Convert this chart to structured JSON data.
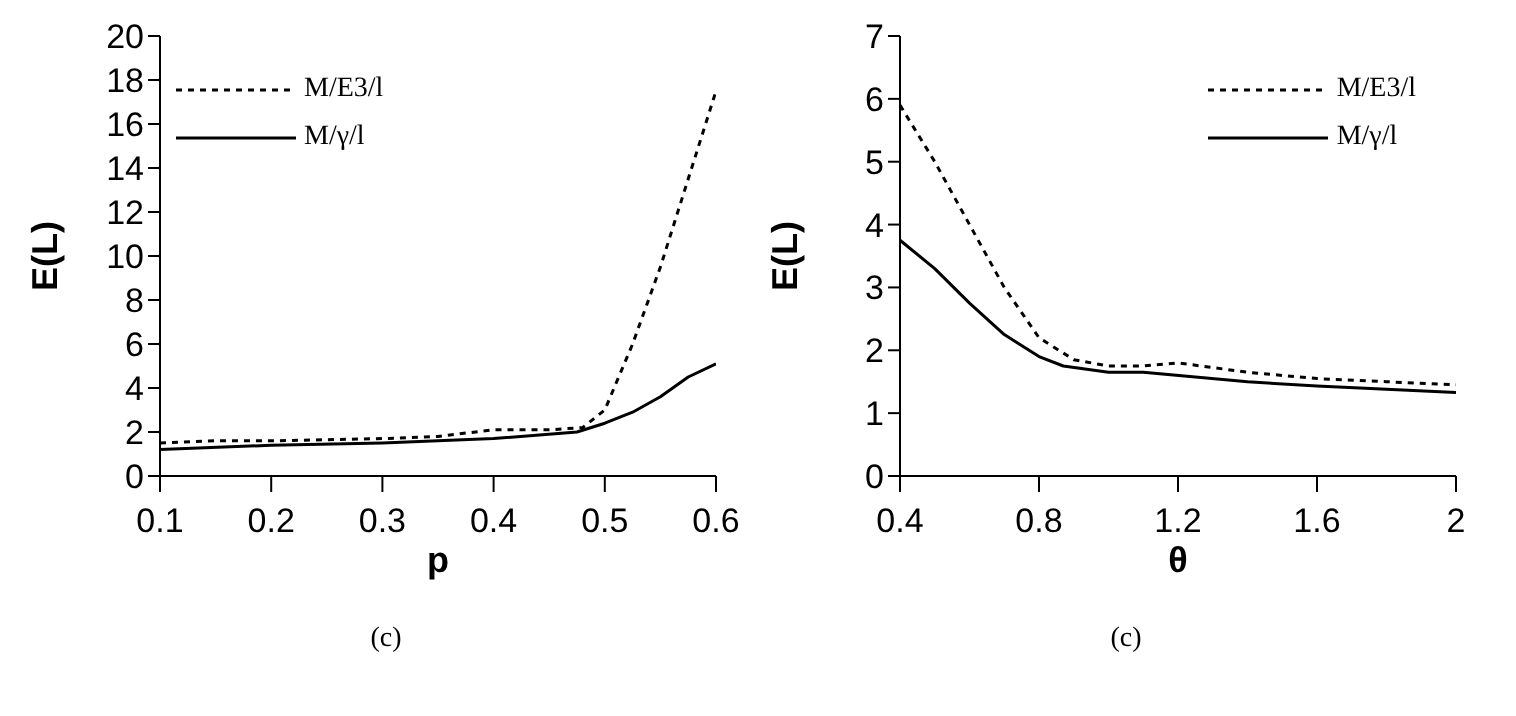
{
  "chart_data": [
    {
      "type": "line",
      "xlabel": "p",
      "ylabel": "E(L)",
      "annotations": [
        "(c)"
      ],
      "xlim": [
        0.1,
        0.6
      ],
      "xticks": [
        0.1,
        0.2,
        0.3,
        0.4,
        0.5,
        0.6
      ],
      "ylim": [
        0,
        20
      ],
      "yticks": [
        0,
        2,
        4,
        6,
        8,
        10,
        12,
        14,
        16,
        18,
        20
      ],
      "grid": false,
      "legend": "top left",
      "marker": "none",
      "series": [
        {
          "name": "M/E3/l",
          "color": "#000000",
          "line_style": "dotted",
          "x": [
            0.1,
            0.15,
            0.2,
            0.3,
            0.35,
            0.4,
            0.45,
            0.48,
            0.5,
            0.525,
            0.55,
            0.575,
            0.6
          ],
          "values": [
            1.5,
            1.6,
            1.6,
            1.7,
            1.8,
            2.1,
            2.1,
            2.2,
            3,
            6,
            9.5,
            13.5,
            17.5
          ]
        },
        {
          "name": "M/γ/l",
          "color": "#000000",
          "line_style": "solid",
          "x": [
            0.1,
            0.2,
            0.3,
            0.4,
            0.475,
            0.5,
            0.525,
            0.55,
            0.575,
            0.6
          ],
          "values": [
            1.2,
            1.4,
            1.5,
            1.7,
            2,
            2.4,
            2.9,
            3.6,
            4.5,
            5.1
          ]
        }
      ]
    },
    {
      "type": "line",
      "xlabel": "θ",
      "ylabel": "E(L)",
      "annotations": [
        "(c)"
      ],
      "xlim": [
        0.4,
        2
      ],
      "xticks": [
        0.4,
        0.8,
        1.2,
        1.6,
        2
      ],
      "ylim": [
        0,
        7
      ],
      "yticks": [
        0,
        1,
        2,
        3,
        4,
        5,
        6,
        7
      ],
      "grid": false,
      "legend": "top right",
      "marker": "none",
      "series": [
        {
          "name": "M/E3/l",
          "color": "#000000",
          "line_style": "dotted",
          "x": [
            0.4,
            0.5,
            0.6,
            0.7,
            0.8,
            0.9,
            1,
            1.1,
            1.2,
            1.4,
            1.6,
            1.8,
            2
          ],
          "values": [
            5.9,
            5,
            4,
            3,
            2.2,
            1.85,
            1.75,
            1.75,
            1.8,
            1.65,
            1.55,
            1.5,
            1.45
          ]
        },
        {
          "name": "M/γ/l",
          "color": "#000000",
          "line_style": "solid",
          "x": [
            0.4,
            0.5,
            0.6,
            0.7,
            0.8,
            0.87,
            1,
            1.1,
            1.4,
            1.6,
            1.8,
            2
          ],
          "values": [
            3.75,
            3.3,
            2.75,
            2.25,
            1.9,
            1.75,
            1.65,
            1.65,
            1.5,
            1.43,
            1.38,
            1.33
          ]
        }
      ]
    }
  ]
}
